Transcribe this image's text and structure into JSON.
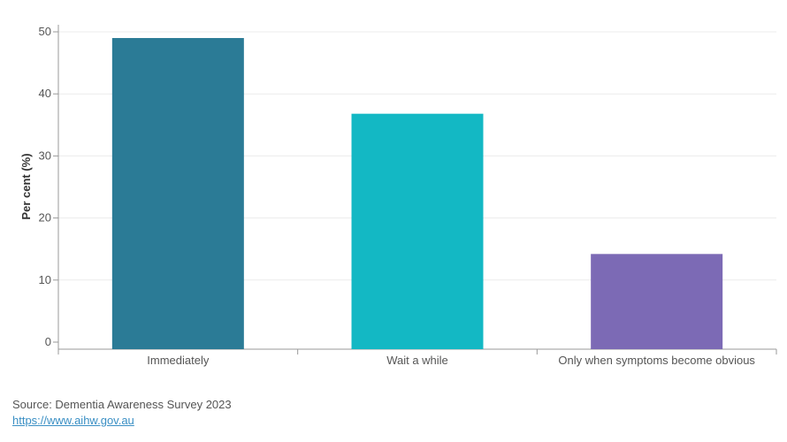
{
  "chart_data": {
    "type": "bar",
    "categories": [
      "Immediately",
      "Wait a while",
      "Only when symptoms become obvious"
    ],
    "values": [
      49,
      36.8,
      14.2
    ],
    "colors": [
      "#2b7b96",
      "#13b8c4",
      "#7c6ab5"
    ],
    "title": "",
    "xlabel": "",
    "ylabel": "Per cent (%)",
    "ylim": [
      0,
      50
    ],
    "yticks": [
      0,
      10,
      20,
      30,
      40,
      50
    ],
    "grid": true
  },
  "footer": {
    "source": "Source: Dementia Awareness Survey 2023",
    "link": "https://www.aihw.gov.au"
  }
}
